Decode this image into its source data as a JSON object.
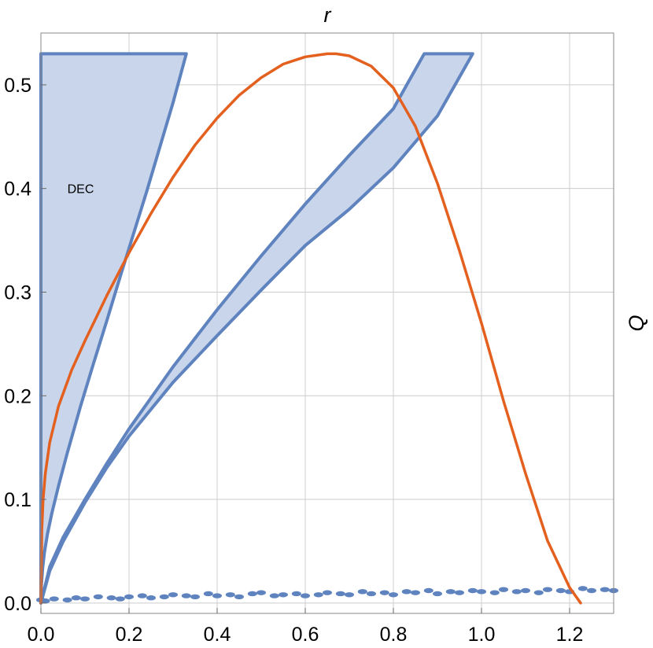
{
  "chart_data": {
    "type": "area",
    "title": "",
    "xlabel": "r",
    "ylabel": "Q",
    "xlim": [
      0,
      1.3
    ],
    "ylim": [
      -0.01,
      0.55
    ],
    "grid": true,
    "xticks": [
      "0.0",
      "0.2",
      "0.4",
      "0.6",
      "0.8",
      "1.0",
      "1.2"
    ],
    "xtick_values": [
      0,
      0.2,
      0.4,
      0.6,
      0.8,
      1.0,
      1.2
    ],
    "yticks": [
      "0.0",
      "0.1",
      "0.2",
      "0.3",
      "0.4",
      "0.5"
    ],
    "ytick_values": [
      0,
      0.1,
      0.2,
      0.3,
      0.4,
      0.5
    ],
    "annotation": "DEC",
    "colors": {
      "region_fill": "#c9d5ea",
      "region_edge": "#5f83bf",
      "curve": "#e3601f",
      "grid": "#cccccc",
      "frame": "#888888"
    },
    "regions": [
      {
        "upper": {
          "x": [
            0,
            0.0004,
            0.002,
            0.005,
            0.01,
            0.02,
            0.03
          ],
          "y": [
            0.53,
            0.53,
            0.53,
            0.53,
            0.53,
            0.53,
            0.53
          ]
        },
        "outline": {
          "x": [
            0.0,
            0.33,
            0.3,
            0.27,
            0.24,
            0.21,
            0.18,
            0.15,
            0.12,
            0.09,
            0.06,
            0.04,
            0.025,
            0.015,
            0.008,
            0.004,
            0.001,
            0.0,
            0.0
          ],
          "y": [
            0.53,
            0.53,
            0.483,
            0.44,
            0.397,
            0.356,
            0.315,
            0.273,
            0.232,
            0.19,
            0.145,
            0.113,
            0.087,
            0.067,
            0.049,
            0.034,
            0.017,
            0.0,
            0.53
          ]
        }
      },
      {
        "outline": {
          "x": [
            0.0,
            0.02,
            0.05,
            0.1,
            0.15,
            0.2,
            0.3,
            0.4,
            0.5,
            0.6,
            0.7,
            0.8,
            0.87,
            0.98,
            0.9,
            0.8,
            0.7,
            0.6,
            0.5,
            0.4,
            0.3,
            0.2,
            0.15,
            0.1,
            0.05,
            0.02,
            0.0
          ],
          "y": [
            0.0,
            0.035,
            0.063,
            0.1,
            0.135,
            0.168,
            0.228,
            0.283,
            0.335,
            0.385,
            0.432,
            0.477,
            0.53,
            0.53,
            0.47,
            0.42,
            0.38,
            0.345,
            0.302,
            0.258,
            0.213,
            0.161,
            0.131,
            0.097,
            0.059,
            0.031,
            0.0
          ]
        }
      }
    ],
    "series": [
      {
        "x": [
          0.0,
          0.002,
          0.005,
          0.01,
          0.02,
          0.04,
          0.07,
          0.1,
          0.15,
          0.2,
          0.25,
          0.3,
          0.35,
          0.4,
          0.45,
          0.5,
          0.55,
          0.6,
          0.65,
          0.67,
          0.7,
          0.75,
          0.8,
          0.85,
          0.9,
          0.95,
          1.0,
          1.05,
          1.1,
          1.15,
          1.2,
          1.225
        ],
        "y": [
          0.0,
          0.07,
          0.1,
          0.125,
          0.155,
          0.19,
          0.225,
          0.253,
          0.297,
          0.338,
          0.376,
          0.411,
          0.442,
          0.468,
          0.49,
          0.507,
          0.52,
          0.527,
          0.53,
          0.53,
          0.528,
          0.518,
          0.497,
          0.46,
          0.405,
          0.34,
          0.27,
          0.195,
          0.125,
          0.06,
          0.015,
          0.0
        ]
      }
    ],
    "scatter": {
      "x": [
        0.0,
        0.01,
        0.03,
        0.06,
        0.08,
        0.1,
        0.13,
        0.16,
        0.18,
        0.2,
        0.23,
        0.25,
        0.28,
        0.3,
        0.33,
        0.35,
        0.38,
        0.4,
        0.43,
        0.45,
        0.48,
        0.5,
        0.53,
        0.55,
        0.58,
        0.6,
        0.63,
        0.65,
        0.68,
        0.7,
        0.73,
        0.75,
        0.78,
        0.8,
        0.83,
        0.85,
        0.88,
        0.9,
        0.93,
        0.95,
        0.98,
        1.0,
        1.03,
        1.05,
        1.08,
        1.1,
        1.13,
        1.15,
        1.18,
        1.2,
        1.23,
        1.25,
        1.28,
        1.3
      ],
      "y": [
        0.003,
        0.002,
        0.004,
        0.003,
        0.005,
        0.004,
        0.006,
        0.005,
        0.004,
        0.006,
        0.007,
        0.005,
        0.006,
        0.008,
        0.007,
        0.006,
        0.009,
        0.007,
        0.008,
        0.006,
        0.009,
        0.01,
        0.007,
        0.008,
        0.009,
        0.007,
        0.008,
        0.01,
        0.009,
        0.008,
        0.011,
        0.009,
        0.01,
        0.008,
        0.011,
        0.01,
        0.012,
        0.009,
        0.011,
        0.01,
        0.012,
        0.011,
        0.01,
        0.013,
        0.011,
        0.012,
        0.01,
        0.013,
        0.012,
        0.011,
        0.014,
        0.012,
        0.013,
        0.012
      ]
    }
  }
}
